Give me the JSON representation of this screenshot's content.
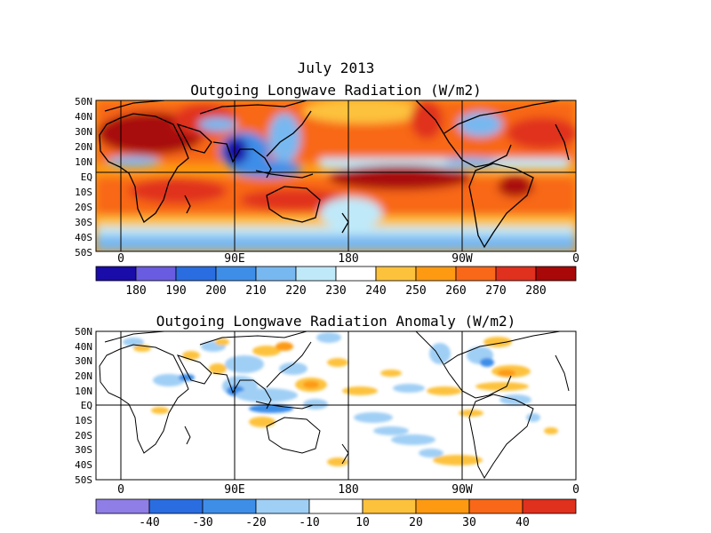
{
  "header": {
    "date": "July 2013"
  },
  "maps": [
    {
      "id": "olr",
      "title": "Outgoing Longwave Radiation (W/m2)",
      "lat_labels": [
        "50N",
        "40N",
        "30N",
        "20N",
        "10N",
        "EQ",
        "10S",
        "20S",
        "30S",
        "40S",
        "50S"
      ],
      "lon_labels": [
        "0",
        "90E",
        "180",
        "90W",
        "0"
      ],
      "colorbar": {
        "labels": [
          "180",
          "190",
          "200",
          "210",
          "220",
          "230",
          "240",
          "250",
          "260",
          "270",
          "280"
        ],
        "colors": [
          "#1a0ca8",
          "#6a5ce0",
          "#2a6de0",
          "#3e8ee8",
          "#78b8f0",
          "#bfe9f9",
          "#ffffff",
          "#fdc23c",
          "#fd9a12",
          "#f86818",
          "#e0301e",
          "#a80808"
        ]
      }
    },
    {
      "id": "anomaly",
      "title": "Outgoing Longwave Radiation Anomaly (W/m2)",
      "lat_labels": [
        "50N",
        "40N",
        "30N",
        "20N",
        "10N",
        "EQ",
        "10S",
        "20S",
        "30S",
        "40S",
        "50S"
      ],
      "lon_labels": [
        "0",
        "90E",
        "180",
        "90W",
        "0"
      ],
      "colorbar": {
        "labels": [
          "-40",
          "-30",
          "-20",
          "-10",
          "10",
          "20",
          "30",
          "40"
        ],
        "colors": [
          "#8e7ee6",
          "#2a6de0",
          "#3e8ee8",
          "#a0cff5",
          "#ffffff",
          "#fdc23c",
          "#fd9a12",
          "#f86818",
          "#e0301e"
        ]
      }
    }
  ]
}
